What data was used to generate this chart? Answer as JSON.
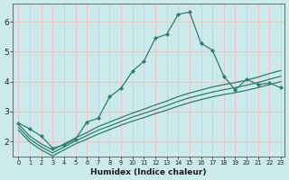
{
  "xlabel": "Humidex (Indice chaleur)",
  "bg_color": "#cce9ec",
  "grid_color": "#e8c8c8",
  "line_color": "#2d7d6e",
  "xlim": [
    -0.5,
    23.3
  ],
  "ylim": [
    1.5,
    6.6
  ],
  "yticks": [
    2,
    3,
    4,
    5,
    6
  ],
  "xticks": [
    0,
    1,
    2,
    3,
    4,
    5,
    6,
    7,
    8,
    9,
    10,
    11,
    12,
    13,
    14,
    15,
    16,
    17,
    18,
    19,
    20,
    21,
    22,
    23
  ],
  "series1_x": [
    0,
    1,
    2,
    3,
    4,
    5,
    6,
    7,
    8,
    9,
    10,
    11,
    12,
    13,
    14,
    15,
    16,
    17,
    18,
    19,
    20,
    21,
    22,
    23
  ],
  "series1_y": [
    2.62,
    2.42,
    2.18,
    1.78,
    1.88,
    2.08,
    2.65,
    2.78,
    3.5,
    3.78,
    4.35,
    4.68,
    5.45,
    5.58,
    6.25,
    6.32,
    5.28,
    5.05,
    4.18,
    3.72,
    4.08,
    3.9,
    3.95,
    3.8
  ],
  "series2_x": [
    0,
    1,
    2,
    3,
    4,
    5,
    6,
    7,
    8,
    9,
    10,
    11,
    12,
    13,
    14,
    15,
    16,
    17,
    18,
    19,
    20,
    21,
    22,
    23
  ],
  "series2_y": [
    2.58,
    2.18,
    1.92,
    1.72,
    1.92,
    2.12,
    2.3,
    2.5,
    2.65,
    2.8,
    2.95,
    3.08,
    3.22,
    3.35,
    3.5,
    3.62,
    3.72,
    3.82,
    3.9,
    3.97,
    4.05,
    4.15,
    4.27,
    4.37
  ],
  "series3_x": [
    0,
    1,
    2,
    3,
    4,
    5,
    6,
    7,
    8,
    9,
    10,
    11,
    12,
    13,
    14,
    15,
    16,
    17,
    18,
    19,
    20,
    21,
    22,
    23
  ],
  "series3_y": [
    2.48,
    2.08,
    1.82,
    1.62,
    1.82,
    2.02,
    2.2,
    2.38,
    2.52,
    2.67,
    2.82,
    2.94,
    3.07,
    3.2,
    3.34,
    3.46,
    3.56,
    3.65,
    3.73,
    3.8,
    3.88,
    3.97,
    4.08,
    4.18
  ],
  "series4_x": [
    0,
    1,
    2,
    3,
    4,
    5,
    6,
    7,
    8,
    9,
    10,
    11,
    12,
    13,
    14,
    15,
    16,
    17,
    18,
    19,
    20,
    21,
    22,
    23
  ],
  "series4_y": [
    2.38,
    1.98,
    1.72,
    1.52,
    1.72,
    1.92,
    2.08,
    2.25,
    2.4,
    2.55,
    2.68,
    2.8,
    2.93,
    3.05,
    3.18,
    3.3,
    3.4,
    3.49,
    3.57,
    3.63,
    3.71,
    3.8,
    3.9,
    4.0
  ]
}
